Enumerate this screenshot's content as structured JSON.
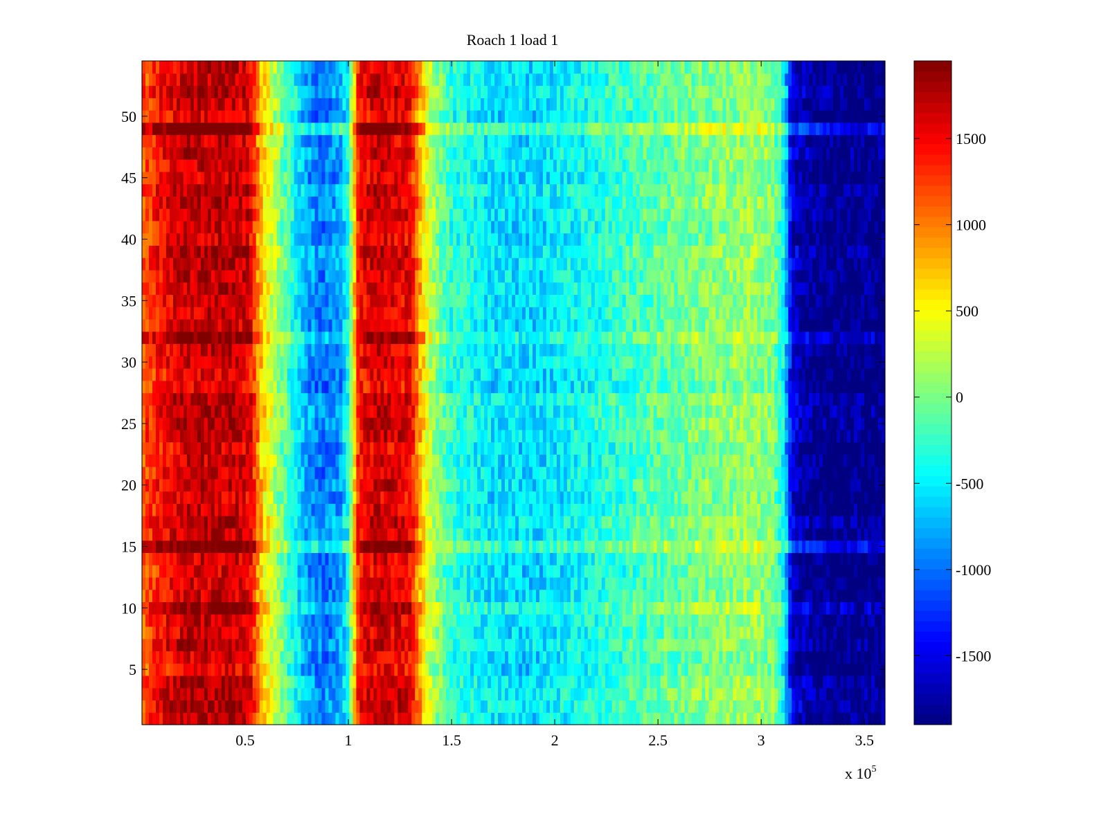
{
  "chart_data": {
    "type": "heatmap",
    "title": "Roach 1 load 1",
    "xlabel": "",
    "ylabel": "",
    "x_exponent_label": "x 10",
    "x_exponent_power": "5",
    "xlim": [
      0,
      360000
    ],
    "ylim": [
      0.5,
      54.5
    ],
    "x_ticks": [
      50000,
      100000,
      150000,
      200000,
      250000,
      300000,
      350000
    ],
    "x_tick_labels": [
      "0.5",
      "1",
      "1.5",
      "2",
      "2.5",
      "3",
      "3.5"
    ],
    "y_ticks": [
      5,
      10,
      15,
      20,
      25,
      30,
      35,
      40,
      45,
      50
    ],
    "y_tick_labels": [
      "5",
      "10",
      "15",
      "20",
      "25",
      "30",
      "35",
      "40",
      "45",
      "50"
    ],
    "n_rows": 54,
    "colormap": "jet",
    "clim": [
      -1900,
      1950
    ],
    "colorbar_ticks": [
      -1500,
      -1000,
      -500,
      0,
      500,
      1000,
      1500
    ],
    "colorbar_tick_labels": [
      "-1500",
      "-1000",
      "-500",
      "0",
      "500",
      "1000",
      "1500"
    ],
    "column_profile": {
      "x": [
        0,
        10000,
        20000,
        40000,
        52000,
        57000,
        63000,
        72000,
        80000,
        88000,
        96000,
        100000,
        105000,
        115000,
        130000,
        134000,
        140000,
        150000,
        170000,
        190000,
        210000,
        240000,
        270000,
        295000,
        306000,
        311000,
        315000,
        325000,
        340000,
        360000
      ],
      "value": [
        1100,
        1450,
        1650,
        1700,
        1600,
        800,
        300,
        -300,
        -800,
        -1000,
        -800,
        -400,
        1450,
        1650,
        1500,
        900,
        200,
        -300,
        -550,
        -600,
        -450,
        -200,
        0,
        100,
        0,
        -500,
        -1600,
        -1850,
        -1900,
        -1900
      ]
    },
    "row_modifiers": {
      "rows": [
        10,
        15,
        28,
        32,
        36,
        49
      ],
      "hot_offset": [
        350,
        350,
        -200,
        200,
        150,
        400
      ]
    }
  }
}
